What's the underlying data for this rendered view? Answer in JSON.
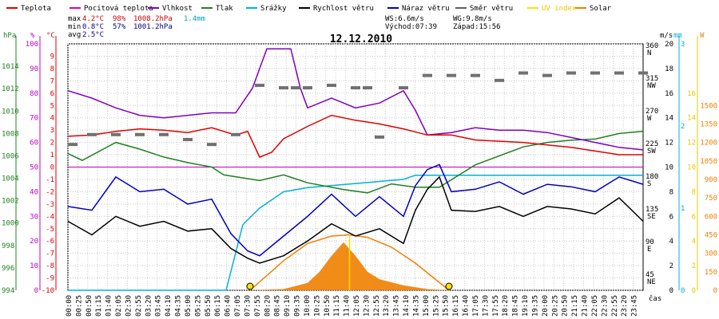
{
  "chart_data": {
    "type": "line",
    "title": "12.12.2010",
    "legend": [
      {
        "name": "Teplota",
        "color": "#e00000"
      },
      {
        "name": "Pocitová teplota",
        "color": "#d000d0"
      },
      {
        "name": "Vlhkost",
        "color": "#8000c0"
      },
      {
        "name": "Tlak",
        "color": "#208020"
      },
      {
        "name": "Srážky",
        "color": "#00b0e0"
      },
      {
        "name": "Rychlost větru",
        "color": "#000000"
      },
      {
        "name": "Náraz větru",
        "color": "#0000c0"
      },
      {
        "name": "Směr větru",
        "color": "#606060"
      },
      {
        "name": "UV index",
        "color": "#ffe000"
      },
      {
        "name": "Solar",
        "color": "#f08000"
      }
    ],
    "stats": {
      "rows": [
        {
          "label": "max",
          "temp": "4.2°C",
          "hum": "98%",
          "press": "1008.2hPa",
          "rain": "1.4mm"
        },
        {
          "label": "min",
          "temp": "0.8°C",
          "hum": "57%",
          "press": "1001.2hPa",
          "rain": ""
        },
        {
          "label": "avg",
          "temp": "2.5°C",
          "hum": "",
          "press": "",
          "rain": ""
        }
      ],
      "ws": "WS:6.6m/s",
      "wg": "WG:9.8m/s",
      "sunrise": "Východ:07:39",
      "sunset": "Západ:15:56"
    },
    "axes": {
      "hpa": {
        "unit": "hPa",
        "min": 994,
        "max": 1016,
        "ticks": [
          994,
          996,
          998,
          1000,
          1002,
          1004,
          1006,
          1008,
          1010,
          1012,
          1014
        ]
      },
      "percent": {
        "unit": "%",
        "ticks": [
          0,
          10,
          20,
          30,
          40,
          50,
          60,
          70,
          80,
          90,
          100
        ]
      },
      "celsius": {
        "unit": "°C",
        "min": -10,
        "max": 10,
        "ticks": [
          9,
          8,
          7,
          6,
          5,
          4,
          3,
          2,
          1,
          0,
          -1,
          -2,
          -3,
          -4,
          -5,
          -6,
          -7,
          -8,
          -9,
          -10
        ]
      },
      "direction": {
        "ticks": [
          {
            "deg": "360",
            "dir": "N"
          },
          {
            "deg": "315",
            "dir": "NW"
          },
          {
            "deg": "270",
            "dir": "W"
          },
          {
            "deg": "225",
            "dir": "SW"
          },
          {
            "deg": "180",
            "dir": "S"
          },
          {
            "deg": "135",
            "dir": "SE"
          },
          {
            "deg": "90",
            "dir": "E"
          },
          {
            "deg": "45",
            "dir": "NE"
          }
        ]
      },
      "ms": {
        "unit": "m/s",
        "ticks": [
          0,
          2,
          4,
          6,
          8,
          10,
          12,
          14,
          16,
          18,
          20
        ]
      },
      "mm": {
        "unit": "mm",
        "ticks": [
          0,
          1,
          2,
          3
        ]
      },
      "uv": {
        "ticks": [
          0,
          2,
          4,
          6,
          8,
          10,
          12,
          14,
          16
        ]
      },
      "wm2": {
        "unit": "W",
        "ticks": [
          0,
          150,
          300,
          450,
          600,
          750,
          900,
          1050,
          1200,
          1350,
          1500
        ]
      },
      "x_label": "čas",
      "x_ticks": [
        "00:00",
        "00:25",
        "00:50",
        "01:15",
        "01:40",
        "02:05",
        "02:30",
        "02:55",
        "03:20",
        "03:45",
        "04:10",
        "04:35",
        "05:00",
        "05:25",
        "05:50",
        "06:15",
        "06:40",
        "07:05",
        "07:30",
        "07:55",
        "08:20",
        "08:45",
        "09:10",
        "09:35",
        "10:00",
        "10:25",
        "10:50",
        "11:15",
        "11:40",
        "12:05",
        "12:30",
        "12:55",
        "13:20",
        "13:45",
        "14:10",
        "14:35",
        "15:00",
        "15:25",
        "15:50",
        "16:15",
        "16:40",
        "17:05",
        "17:30",
        "17:55",
        "18:20",
        "18:45",
        "19:10",
        "19:35",
        "20:00",
        "20:25",
        "20:50",
        "21:15",
        "21:40",
        "22:05",
        "22:30",
        "22:55",
        "23:20",
        "23:45"
      ]
    },
    "series": {
      "teplota": [
        [
          0,
          2.5
        ],
        [
          1,
          2.6
        ],
        [
          2,
          2.9
        ],
        [
          3,
          3.1
        ],
        [
          4,
          3.0
        ],
        [
          5,
          2.8
        ],
        [
          6,
          3.2
        ],
        [
          7,
          2.6
        ],
        [
          7.5,
          2.9
        ],
        [
          8,
          0.8
        ],
        [
          8.5,
          1.2
        ],
        [
          9,
          2.3
        ],
        [
          10,
          3.3
        ],
        [
          11,
          4.2
        ],
        [
          12,
          3.8
        ],
        [
          13,
          3.5
        ],
        [
          14,
          3.1
        ],
        [
          15,
          2.6
        ],
        [
          16,
          2.6
        ],
        [
          17,
          2.2
        ],
        [
          18,
          2.1
        ],
        [
          19,
          2.0
        ],
        [
          20,
          1.8
        ],
        [
          21,
          1.6
        ],
        [
          22,
          1.3
        ],
        [
          23,
          1.0
        ],
        [
          24,
          1.0
        ]
      ],
      "vlhkost": [
        [
          0,
          81
        ],
        [
          1,
          78
        ],
        [
          2,
          74
        ],
        [
          3,
          71
        ],
        [
          4,
          70
        ],
        [
          5,
          71
        ],
        [
          6,
          72
        ],
        [
          7,
          72
        ],
        [
          7.7,
          82
        ],
        [
          8.3,
          98
        ],
        [
          9.3,
          98
        ],
        [
          9.7,
          82
        ],
        [
          10,
          74
        ],
        [
          11,
          78
        ],
        [
          12,
          74
        ],
        [
          13,
          76
        ],
        [
          14,
          81
        ],
        [
          14.5,
          73
        ],
        [
          15,
          63
        ],
        [
          16,
          64
        ],
        [
          17,
          66
        ],
        [
          18,
          65
        ],
        [
          19,
          65
        ],
        [
          20,
          64
        ],
        [
          21,
          62
        ],
        [
          22,
          60
        ],
        [
          23,
          58
        ],
        [
          24,
          57
        ]
      ],
      "tlak": [
        [
          0,
          1006.2
        ],
        [
          0.6,
          1005.6
        ],
        [
          1.3,
          1006.4
        ],
        [
          2,
          1007.2
        ],
        [
          3,
          1006.6
        ],
        [
          4,
          1005.9
        ],
        [
          5,
          1005.4
        ],
        [
          6,
          1005.0
        ],
        [
          6.5,
          1004.3
        ],
        [
          8,
          1003.8
        ],
        [
          9,
          1004.3
        ],
        [
          10,
          1003.6
        ],
        [
          11.5,
          1003.0
        ],
        [
          12.5,
          1002.7
        ],
        [
          13.5,
          1003.5
        ],
        [
          14.5,
          1003.2
        ],
        [
          15.5,
          1003.2
        ],
        [
          17,
          1005.2
        ],
        [
          19,
          1006.8
        ],
        [
          20,
          1007.2
        ],
        [
          21,
          1007.4
        ],
        [
          22,
          1007.5
        ],
        [
          23,
          1008.0
        ],
        [
          24,
          1008.2
        ]
      ],
      "srazky": [
        [
          0,
          0
        ],
        [
          6.6,
          0
        ],
        [
          7.3,
          0.8
        ],
        [
          8,
          1.0
        ],
        [
          9,
          1.2
        ],
        [
          10,
          1.25
        ],
        [
          12,
          1.3
        ],
        [
          14,
          1.35
        ],
        [
          14.5,
          1.4
        ],
        [
          24,
          1.4
        ]
      ],
      "rychlost": [
        [
          0,
          5.6
        ],
        [
          1,
          4.5
        ],
        [
          2,
          6.0
        ],
        [
          3,
          5.2
        ],
        [
          4,
          5.6
        ],
        [
          5,
          4.8
        ],
        [
          6,
          5.0
        ],
        [
          6.8,
          3.4
        ],
        [
          7.5,
          2.6
        ],
        [
          8,
          2.2
        ],
        [
          9,
          2.8
        ],
        [
          10,
          4.0
        ],
        [
          11,
          5.4
        ],
        [
          12,
          4.4
        ],
        [
          13,
          5.0
        ],
        [
          14,
          3.8
        ],
        [
          14.5,
          6.5
        ],
        [
          15,
          8.2
        ],
        [
          15.5,
          9.2
        ],
        [
          16,
          6.5
        ],
        [
          17,
          6.4
        ],
        [
          18,
          6.8
        ],
        [
          19,
          6.0
        ],
        [
          20,
          6.8
        ],
        [
          21,
          6.6
        ],
        [
          22,
          6.2
        ],
        [
          23,
          7.5
        ],
        [
          24,
          5.6
        ]
      ],
      "naraz": [
        [
          0,
          6.8
        ],
        [
          1,
          6.5
        ],
        [
          2,
          9.2
        ],
        [
          3,
          8.0
        ],
        [
          4,
          8.2
        ],
        [
          5,
          7.0
        ],
        [
          6,
          7.4
        ],
        [
          6.8,
          4.6
        ],
        [
          7.5,
          3.2
        ],
        [
          8,
          2.8
        ],
        [
          9,
          4.4
        ],
        [
          10,
          6.0
        ],
        [
          11,
          7.8
        ],
        [
          12,
          6.0
        ],
        [
          13,
          7.6
        ],
        [
          14,
          6.0
        ],
        [
          14.5,
          8.5
        ],
        [
          15,
          9.8
        ],
        [
          15.5,
          10.2
        ],
        [
          16,
          8.0
        ],
        [
          17,
          8.2
        ],
        [
          18,
          8.8
        ],
        [
          19,
          7.8
        ],
        [
          20,
          8.6
        ],
        [
          21,
          8.4
        ],
        [
          22,
          8.0
        ],
        [
          23,
          9.2
        ],
        [
          24,
          8.6
        ]
      ],
      "smer": [
        [
          0.2,
          185
        ],
        [
          1,
          205
        ],
        [
          2,
          205
        ],
        [
          3,
          205
        ],
        [
          4,
          205
        ],
        [
          5,
          195
        ],
        [
          6,
          185
        ],
        [
          7,
          205
        ],
        [
          8,
          305
        ],
        [
          9,
          300
        ],
        [
          9.5,
          300
        ],
        [
          10,
          300
        ],
        [
          11,
          305
        ],
        [
          12,
          300
        ],
        [
          12.5,
          300
        ],
        [
          13,
          200
        ],
        [
          14,
          300
        ],
        [
          15,
          325
        ],
        [
          16,
          325
        ],
        [
          17,
          325
        ],
        [
          18,
          315
        ],
        [
          19,
          330
        ],
        [
          20,
          325
        ],
        [
          21,
          330
        ],
        [
          22,
          330
        ],
        [
          23,
          330
        ],
        [
          24,
          330
        ]
      ],
      "solar": [
        [
          7.6,
          0
        ],
        [
          9,
          10
        ],
        [
          10,
          60
        ],
        [
          10.5,
          150
        ],
        [
          11,
          280
        ],
        [
          11.5,
          390
        ],
        [
          12,
          280
        ],
        [
          12.5,
          150
        ],
        [
          13,
          90
        ],
        [
          14,
          40
        ],
        [
          15,
          10
        ],
        [
          15.9,
          0
        ]
      ],
      "solar_max": [
        [
          7.6,
          0
        ],
        [
          9,
          240
        ],
        [
          10,
          380
        ],
        [
          11,
          440
        ],
        [
          11.7,
          450
        ],
        [
          12.5,
          430
        ],
        [
          13.5,
          350
        ],
        [
          14.5,
          220
        ],
        [
          15.9,
          0
        ]
      ]
    }
  }
}
